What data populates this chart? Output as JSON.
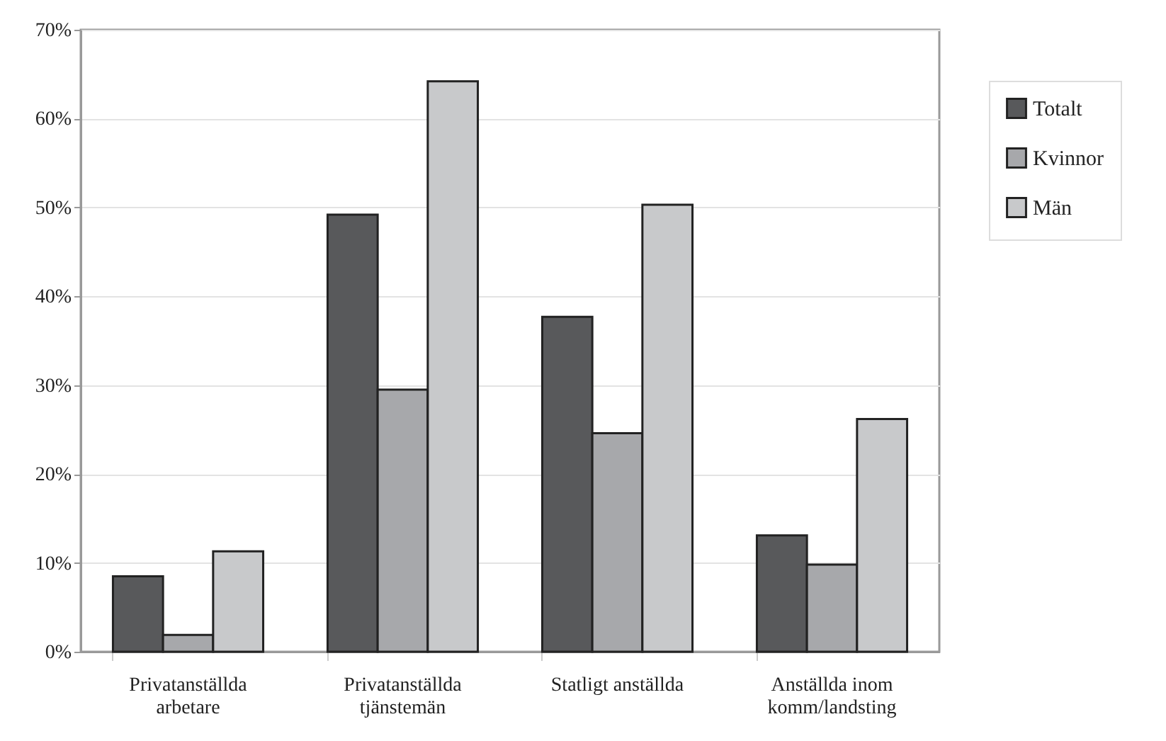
{
  "chart_data": {
    "type": "bar",
    "categories": [
      "Privatanställda arbetare",
      "Privatanställda tjänstemän",
      "Statligt anställda",
      "Anställda inom komm/landsting"
    ],
    "series": [
      {
        "name": "Totalt",
        "color": "#58595b",
        "values": [
          8.5,
          49.2,
          37.7,
          13.1
        ]
      },
      {
        "name": "Kvinnor",
        "color": "#a7a8ab",
        "values": [
          1.9,
          29.5,
          24.6,
          9.8
        ]
      },
      {
        "name": "Män",
        "color": "#c8c9cb",
        "values": [
          11.3,
          64.2,
          50.3,
          26.2
        ]
      }
    ],
    "ylim": [
      0,
      70
    ],
    "yticks": [
      {
        "value": 0,
        "label": "0%"
      },
      {
        "value": 10,
        "label": "10%"
      },
      {
        "value": 20,
        "label": "20%"
      },
      {
        "value": 30,
        "label": "30%"
      },
      {
        "value": 40,
        "label": "40%"
      },
      {
        "value": 50,
        "label": "50%"
      },
      {
        "value": 60,
        "label": "60%"
      },
      {
        "value": 70,
        "label": "70%"
      }
    ],
    "grid": "y",
    "legend": "top right"
  }
}
